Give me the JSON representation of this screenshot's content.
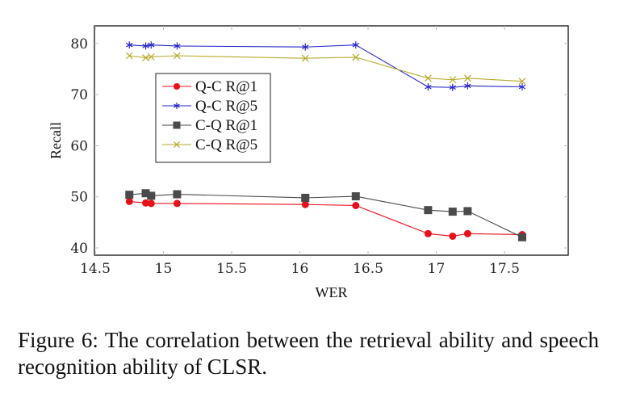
{
  "chart_data": {
    "type": "line",
    "title": "",
    "xlabel": "WER",
    "ylabel": "Recall",
    "xlim": [
      14.5,
      17.85
    ],
    "ylim": [
      38.5,
      83.5
    ],
    "xticks": [
      14.5,
      15,
      15.5,
      16,
      16.5,
      17,
      17.5
    ],
    "xtick_labels": [
      "14.5",
      "15",
      "15.5",
      "16",
      "16.5",
      "17",
      "17.5"
    ],
    "yticks": [
      40,
      50,
      60,
      70,
      80
    ],
    "ytick_labels": [
      "40",
      "50",
      "60",
      "70",
      "80"
    ],
    "grid": false,
    "legend_position": "upper-left-inside",
    "x": [
      14.75,
      14.87,
      14.91,
      15.1,
      16.04,
      16.41,
      16.94,
      17.12,
      17.23,
      17.63
    ],
    "series": [
      {
        "name": "Q-C R@1",
        "color": "#e8101a",
        "marker": "circle",
        "values": [
          49.1,
          48.8,
          48.7,
          48.7,
          48.5,
          48.3,
          42.8,
          42.3,
          42.8,
          42.6
        ]
      },
      {
        "name": "Q-C R@5",
        "color": "#2828c8",
        "marker": "star",
        "values": [
          79.7,
          79.5,
          79.7,
          79.5,
          79.3,
          79.7,
          71.5,
          71.4,
          71.7,
          71.5
        ]
      },
      {
        "name": "C-Q R@1",
        "color": "#4a4a4a",
        "marker": "square",
        "values": [
          50.4,
          50.7,
          50.2,
          50.5,
          49.8,
          50.1,
          47.4,
          47.1,
          47.2,
          42.1
        ]
      },
      {
        "name": "C-Q R@5",
        "color": "#b8a82a",
        "marker": "x",
        "values": [
          77.6,
          77.2,
          77.4,
          77.6,
          77.1,
          77.3,
          73.2,
          72.9,
          73.2,
          72.6
        ]
      }
    ]
  },
  "caption": "Figure 6: The correlation between the retrieval ability and speech recognition ability of CLSR."
}
